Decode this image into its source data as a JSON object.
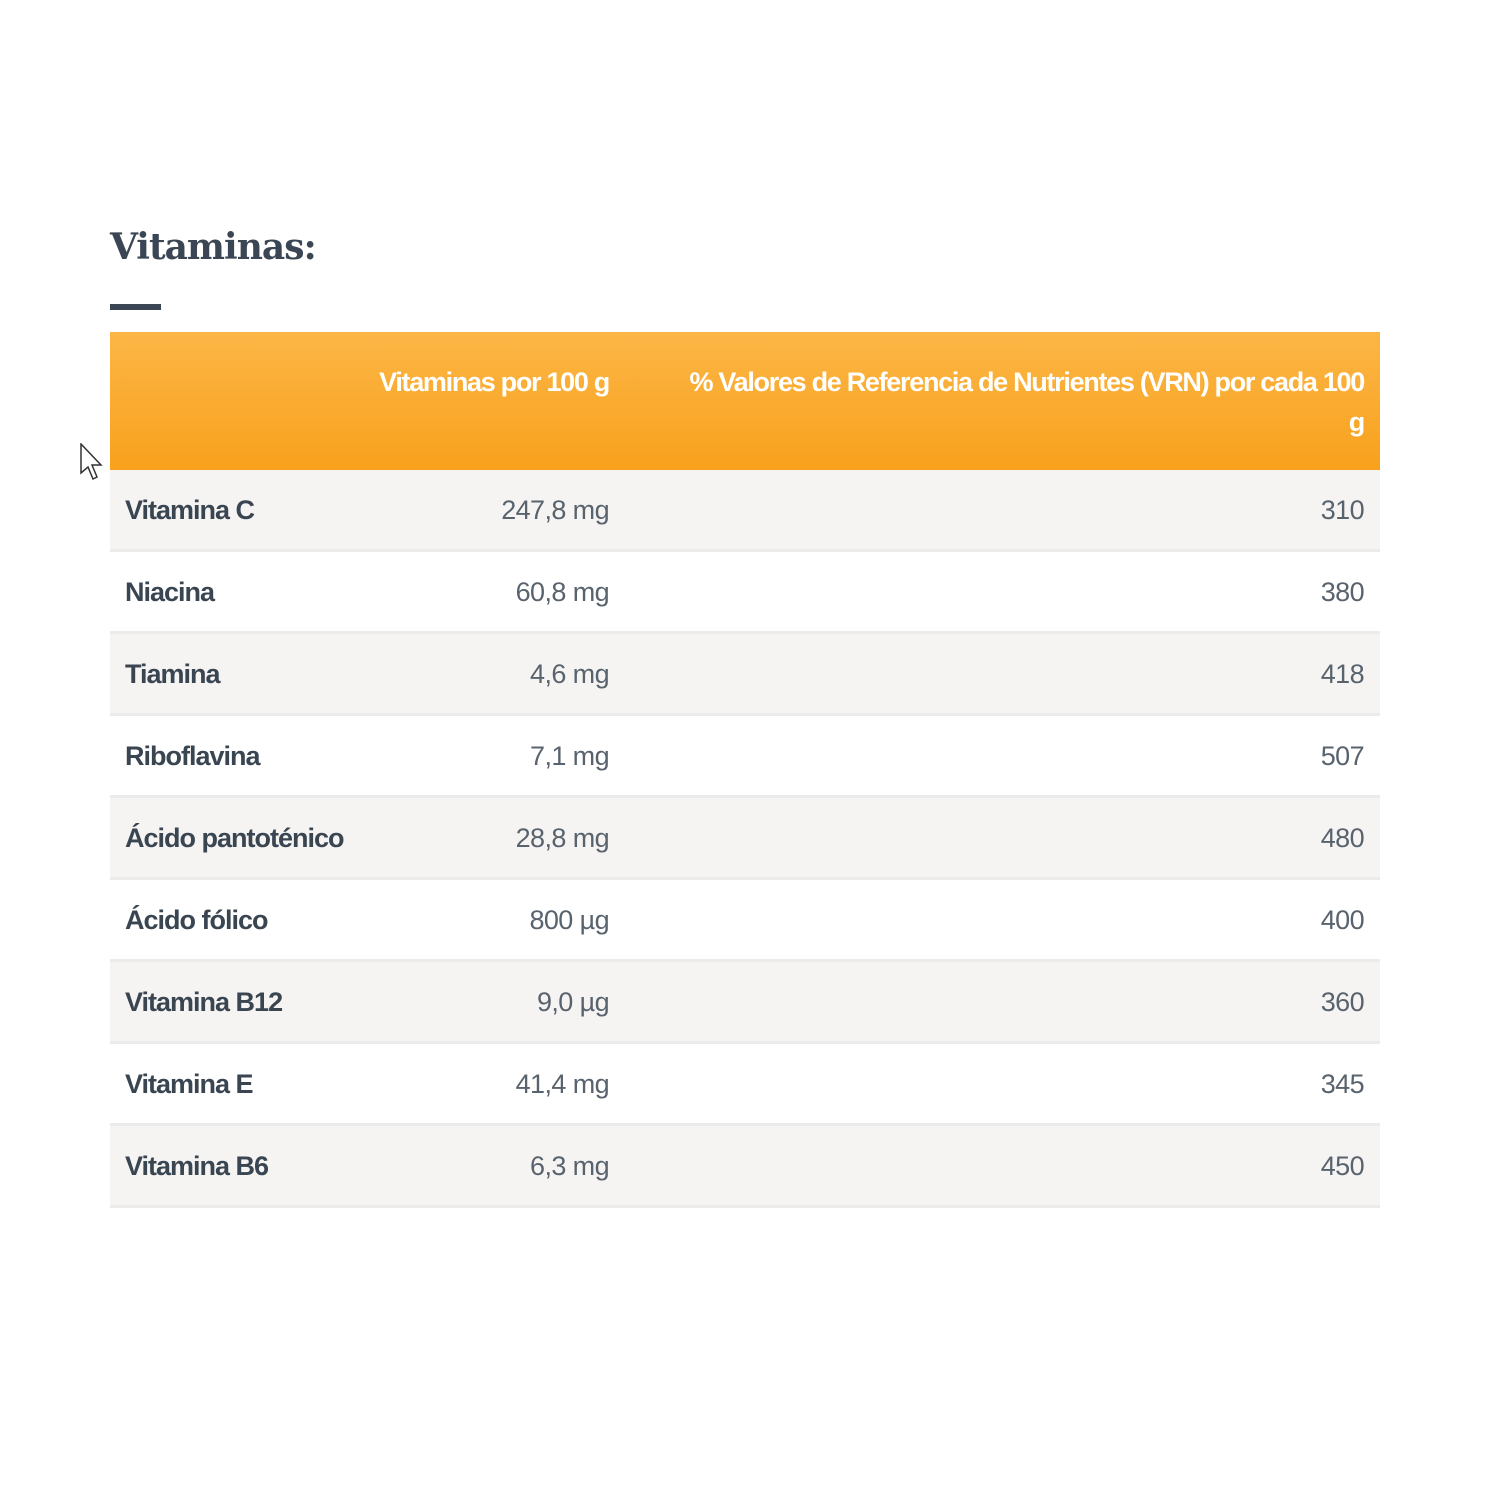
{
  "title": "Vitaminas:",
  "colors": {
    "header_bg": "#f9a61f",
    "text": "#3b4654",
    "row_alt": "#f5f4f3"
  },
  "table": {
    "headers": [
      "",
      "Vitaminas por 100 g",
      "% Valores de Referencia de Nutrientes (VRN) por cada 100 g"
    ],
    "rows": [
      {
        "name": "Vitamina C",
        "amount": "247,8 mg",
        "vrn": "310"
      },
      {
        "name": "Niacina",
        "amount": "60,8 mg",
        "vrn": "380"
      },
      {
        "name": "Tiamina",
        "amount": "4,6 mg",
        "vrn": "418"
      },
      {
        "name": "Riboflavina",
        "amount": "7,1 mg",
        "vrn": "507"
      },
      {
        "name": "Ácido pantoténico",
        "amount": "28,8 mg",
        "vrn": "480"
      },
      {
        "name": "Ácido fólico",
        "amount": "800 µg",
        "vrn": "400"
      },
      {
        "name": "Vitamina B12",
        "amount": "9,0 µg",
        "vrn": "360"
      },
      {
        "name": "Vitamina E",
        "amount": "41,4 mg",
        "vrn": "345"
      },
      {
        "name": "Vitamina B6",
        "amount": "6,3 mg",
        "vrn": "450"
      }
    ]
  }
}
